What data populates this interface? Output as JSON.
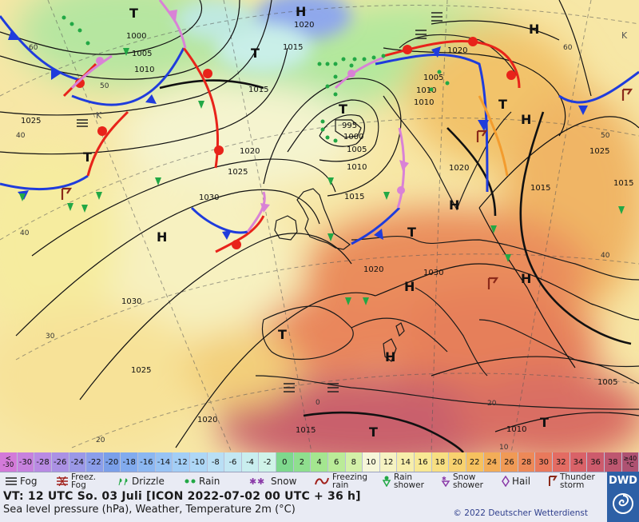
{
  "map": {
    "pressure_labels": [
      "1000",
      "1005",
      "1010",
      "1015",
      "1020",
      "1025",
      "1030",
      "1015",
      "1020",
      "1025",
      "1030",
      "1025",
      "1020",
      "1015",
      "1010",
      "1005",
      "1000",
      "995",
      "1010",
      "1015",
      "1020",
      "1005",
      "1010",
      "1015",
      "1020",
      "1025",
      "1030",
      "1020",
      "1015",
      "1010",
      "1005"
    ],
    "lat_labels": [
      "60",
      "50",
      "40",
      "40",
      "30",
      "20",
      "60",
      "50",
      "40",
      "20",
      "10",
      "0"
    ],
    "high_symbol": "H",
    "low_symbol": "T",
    "storm_symbol": "K"
  },
  "color_scale": [
    {
      "label": "< -30",
      "color": "#d37ad9"
    },
    {
      "label": "-30",
      "color": "#c781de"
    },
    {
      "label": "-28",
      "color": "#b98ae3"
    },
    {
      "label": "-26",
      "color": "#ab91e4"
    },
    {
      "label": "-24",
      "color": "#9b98e7"
    },
    {
      "label": "-22",
      "color": "#8b9eea"
    },
    {
      "label": "-20",
      "color": "#7a9fe9"
    },
    {
      "label": "-18",
      "color": "#82abee"
    },
    {
      "label": "-16",
      "color": "#8cb7f1"
    },
    {
      "label": "-14",
      "color": "#98c3f4"
    },
    {
      "label": "-12",
      "color": "#a3cef6"
    },
    {
      "label": "-10",
      "color": "#aed7f6"
    },
    {
      "label": "-8",
      "color": "#b9dff5"
    },
    {
      "label": "-6",
      "color": "#c3e7f3"
    },
    {
      "label": "-4",
      "color": "#c9eeef"
    },
    {
      "label": "-2",
      "color": "#cff3e8"
    },
    {
      "label": "0",
      "color": "#7ed88d"
    },
    {
      "label": "2",
      "color": "#8fdf8e"
    },
    {
      "label": "4",
      "color": "#a4e690"
    },
    {
      "label": "6",
      "color": "#baeb98"
    },
    {
      "label": "8",
      "color": "#d3f0a8"
    },
    {
      "label": "10",
      "color": "#f6f6d9"
    },
    {
      "label": "12",
      "color": "#f6f3c2"
    },
    {
      "label": "14",
      "color": "#f7eeab"
    },
    {
      "label": "16",
      "color": "#f8e894"
    },
    {
      "label": "18",
      "color": "#f8df82"
    },
    {
      "label": "20",
      "color": "#f8d26f"
    },
    {
      "label": "22",
      "color": "#f6c15f"
    },
    {
      "label": "24",
      "color": "#f3ad58"
    },
    {
      "label": "26",
      "color": "#f09a56"
    },
    {
      "label": "28",
      "color": "#ed8958"
    },
    {
      "label": "30",
      "color": "#e9795c"
    },
    {
      "label": "32",
      "color": "#e36c63"
    },
    {
      "label": "34",
      "color": "#d96268"
    },
    {
      "label": "36",
      "color": "#cd5b6c"
    },
    {
      "label": "38",
      "color": "#be5770"
    },
    {
      "label": "≥40 °C",
      "color": "#ae5272"
    }
  ],
  "legend": {
    "fog": "Fog",
    "freezing_fog": "Freez. Fog",
    "drizzle": "Drizzle",
    "rain": "Rain",
    "snow": "Snow",
    "freezing_rain": "Freezing rain",
    "rain_shower": "Rain shower",
    "snow_shower": "Snow shower",
    "hail": "Hail",
    "thunderstorm": "Thunder storm"
  },
  "footer": {
    "title": "VT: 12 UTC So.  03 Juli [ICON 2022-07-02  00 UTC + 36 h]",
    "subtitle": "Sea level pressure (hPa), Weather, Temperature 2m (°C)",
    "copyright": "© 2022 Deutscher Wetterdienst"
  },
  "brand": {
    "logo_text": "DWD",
    "color": "#2d60a6"
  },
  "colors": {
    "cold_front": "#1f3cdc",
    "warm_front": "#e8231a",
    "occlusion": "#d982d6",
    "trough": "#f39c2e",
    "precip": "#22a845"
  }
}
